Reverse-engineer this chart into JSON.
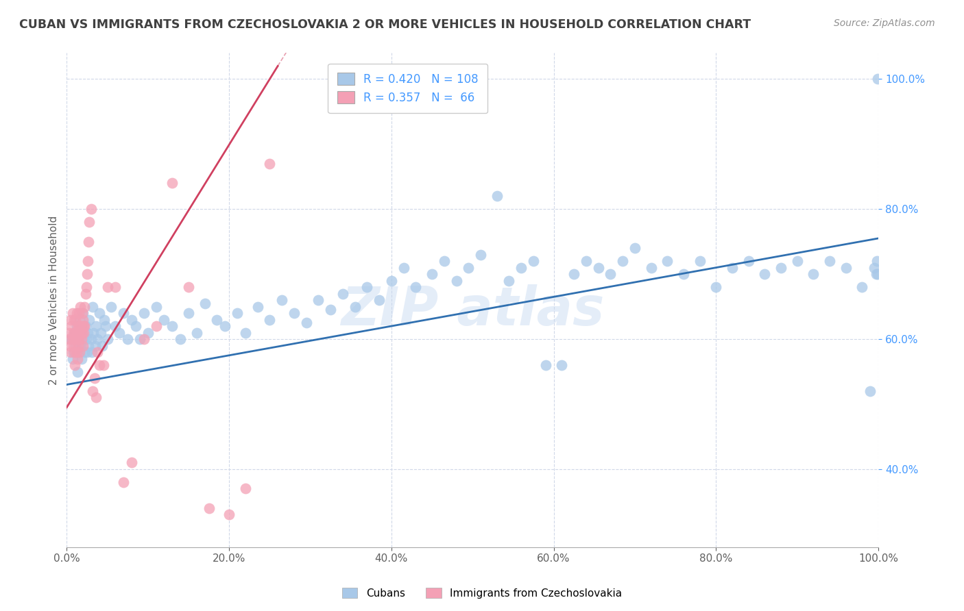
{
  "title": "CUBAN VS IMMIGRANTS FROM CZECHOSLOVAKIA 2 OR MORE VEHICLES IN HOUSEHOLD CORRELATION CHART",
  "source": "Source: ZipAtlas.com",
  "ylabel": "2 or more Vehicles in Household",
  "watermark": "ZIP atlas",
  "blue_R": 0.42,
  "blue_N": 108,
  "pink_R": 0.357,
  "pink_N": 66,
  "blue_color": "#a8c8e8",
  "pink_color": "#f4a0b5",
  "blue_line_color": "#3070b0",
  "pink_line_color": "#d04060",
  "xmin": 0.0,
  "xmax": 1.0,
  "ymin": 0.28,
  "ymax": 1.04,
  "title_color": "#404040",
  "source_color": "#909090",
  "axis_label_color": "#606060",
  "legend_R_N_color": "#4499ff",
  "blue_line_start_y": 0.53,
  "blue_line_end_y": 0.755,
  "pink_line_start_y": 0.495,
  "pink_line_end_y": 1.02,
  "pink_line_end_x": 0.26,
  "blue_points_x": [
    0.005,
    0.007,
    0.008,
    0.01,
    0.011,
    0.012,
    0.013,
    0.014,
    0.015,
    0.015,
    0.016,
    0.017,
    0.018,
    0.019,
    0.02,
    0.021,
    0.022,
    0.023,
    0.024,
    0.025,
    0.026,
    0.027,
    0.028,
    0.03,
    0.031,
    0.032,
    0.033,
    0.035,
    0.036,
    0.038,
    0.04,
    0.042,
    0.044,
    0.046,
    0.048,
    0.05,
    0.055,
    0.06,
    0.065,
    0.07,
    0.075,
    0.08,
    0.085,
    0.09,
    0.095,
    0.1,
    0.11,
    0.12,
    0.13,
    0.14,
    0.15,
    0.16,
    0.17,
    0.185,
    0.195,
    0.21,
    0.22,
    0.235,
    0.25,
    0.265,
    0.28,
    0.295,
    0.31,
    0.325,
    0.34,
    0.355,
    0.37,
    0.385,
    0.4,
    0.415,
    0.43,
    0.45,
    0.465,
    0.48,
    0.495,
    0.51,
    0.53,
    0.545,
    0.56,
    0.575,
    0.59,
    0.61,
    0.625,
    0.64,
    0.655,
    0.67,
    0.685,
    0.7,
    0.72,
    0.74,
    0.76,
    0.78,
    0.8,
    0.82,
    0.84,
    0.86,
    0.88,
    0.9,
    0.92,
    0.94,
    0.96,
    0.98,
    0.99,
    0.995,
    0.997,
    0.998,
    0.999,
    0.999
  ],
  "blue_points_y": [
    0.6,
    0.57,
    0.58,
    0.61,
    0.59,
    0.62,
    0.55,
    0.6,
    0.58,
    0.61,
    0.63,
    0.59,
    0.57,
    0.61,
    0.64,
    0.6,
    0.58,
    0.62,
    0.6,
    0.58,
    0.61,
    0.59,
    0.63,
    0.6,
    0.58,
    0.65,
    0.61,
    0.59,
    0.62,
    0.6,
    0.64,
    0.61,
    0.59,
    0.63,
    0.62,
    0.6,
    0.65,
    0.62,
    0.61,
    0.64,
    0.6,
    0.63,
    0.62,
    0.6,
    0.64,
    0.61,
    0.65,
    0.63,
    0.62,
    0.6,
    0.64,
    0.61,
    0.655,
    0.63,
    0.62,
    0.64,
    0.61,
    0.65,
    0.63,
    0.66,
    0.64,
    0.625,
    0.66,
    0.645,
    0.67,
    0.65,
    0.68,
    0.66,
    0.69,
    0.71,
    0.68,
    0.7,
    0.72,
    0.69,
    0.71,
    0.73,
    0.82,
    0.69,
    0.71,
    0.72,
    0.56,
    0.56,
    0.7,
    0.72,
    0.71,
    0.7,
    0.72,
    0.74,
    0.71,
    0.72,
    0.7,
    0.72,
    0.68,
    0.71,
    0.72,
    0.7,
    0.71,
    0.72,
    0.7,
    0.72,
    0.71,
    0.68,
    0.52,
    0.71,
    0.7,
    0.72,
    0.7,
    1.0
  ],
  "pink_points_x": [
    0.002,
    0.003,
    0.004,
    0.005,
    0.005,
    0.006,
    0.007,
    0.007,
    0.008,
    0.008,
    0.009,
    0.009,
    0.01,
    0.01,
    0.01,
    0.011,
    0.011,
    0.012,
    0.012,
    0.012,
    0.013,
    0.013,
    0.014,
    0.014,
    0.015,
    0.015,
    0.015,
    0.016,
    0.016,
    0.017,
    0.017,
    0.018,
    0.018,
    0.019,
    0.019,
    0.02,
    0.02,
    0.021,
    0.021,
    0.022,
    0.022,
    0.023,
    0.024,
    0.025,
    0.026,
    0.027,
    0.028,
    0.03,
    0.032,
    0.034,
    0.036,
    0.038,
    0.04,
    0.045,
    0.05,
    0.06,
    0.07,
    0.08,
    0.095,
    0.11,
    0.13,
    0.15,
    0.175,
    0.2,
    0.22,
    0.25
  ],
  "pink_points_y": [
    0.6,
    0.61,
    0.59,
    0.58,
    0.63,
    0.62,
    0.6,
    0.64,
    0.59,
    0.61,
    0.63,
    0.6,
    0.58,
    0.61,
    0.56,
    0.6,
    0.63,
    0.58,
    0.61,
    0.64,
    0.6,
    0.57,
    0.62,
    0.59,
    0.61,
    0.64,
    0.6,
    0.58,
    0.62,
    0.61,
    0.65,
    0.62,
    0.6,
    0.64,
    0.61,
    0.59,
    0.63,
    0.61,
    0.62,
    0.65,
    0.62,
    0.67,
    0.68,
    0.7,
    0.72,
    0.75,
    0.78,
    0.8,
    0.52,
    0.54,
    0.51,
    0.58,
    0.56,
    0.56,
    0.68,
    0.68,
    0.38,
    0.41,
    0.6,
    0.62,
    0.84,
    0.68,
    0.34,
    0.33,
    0.37,
    0.87
  ]
}
